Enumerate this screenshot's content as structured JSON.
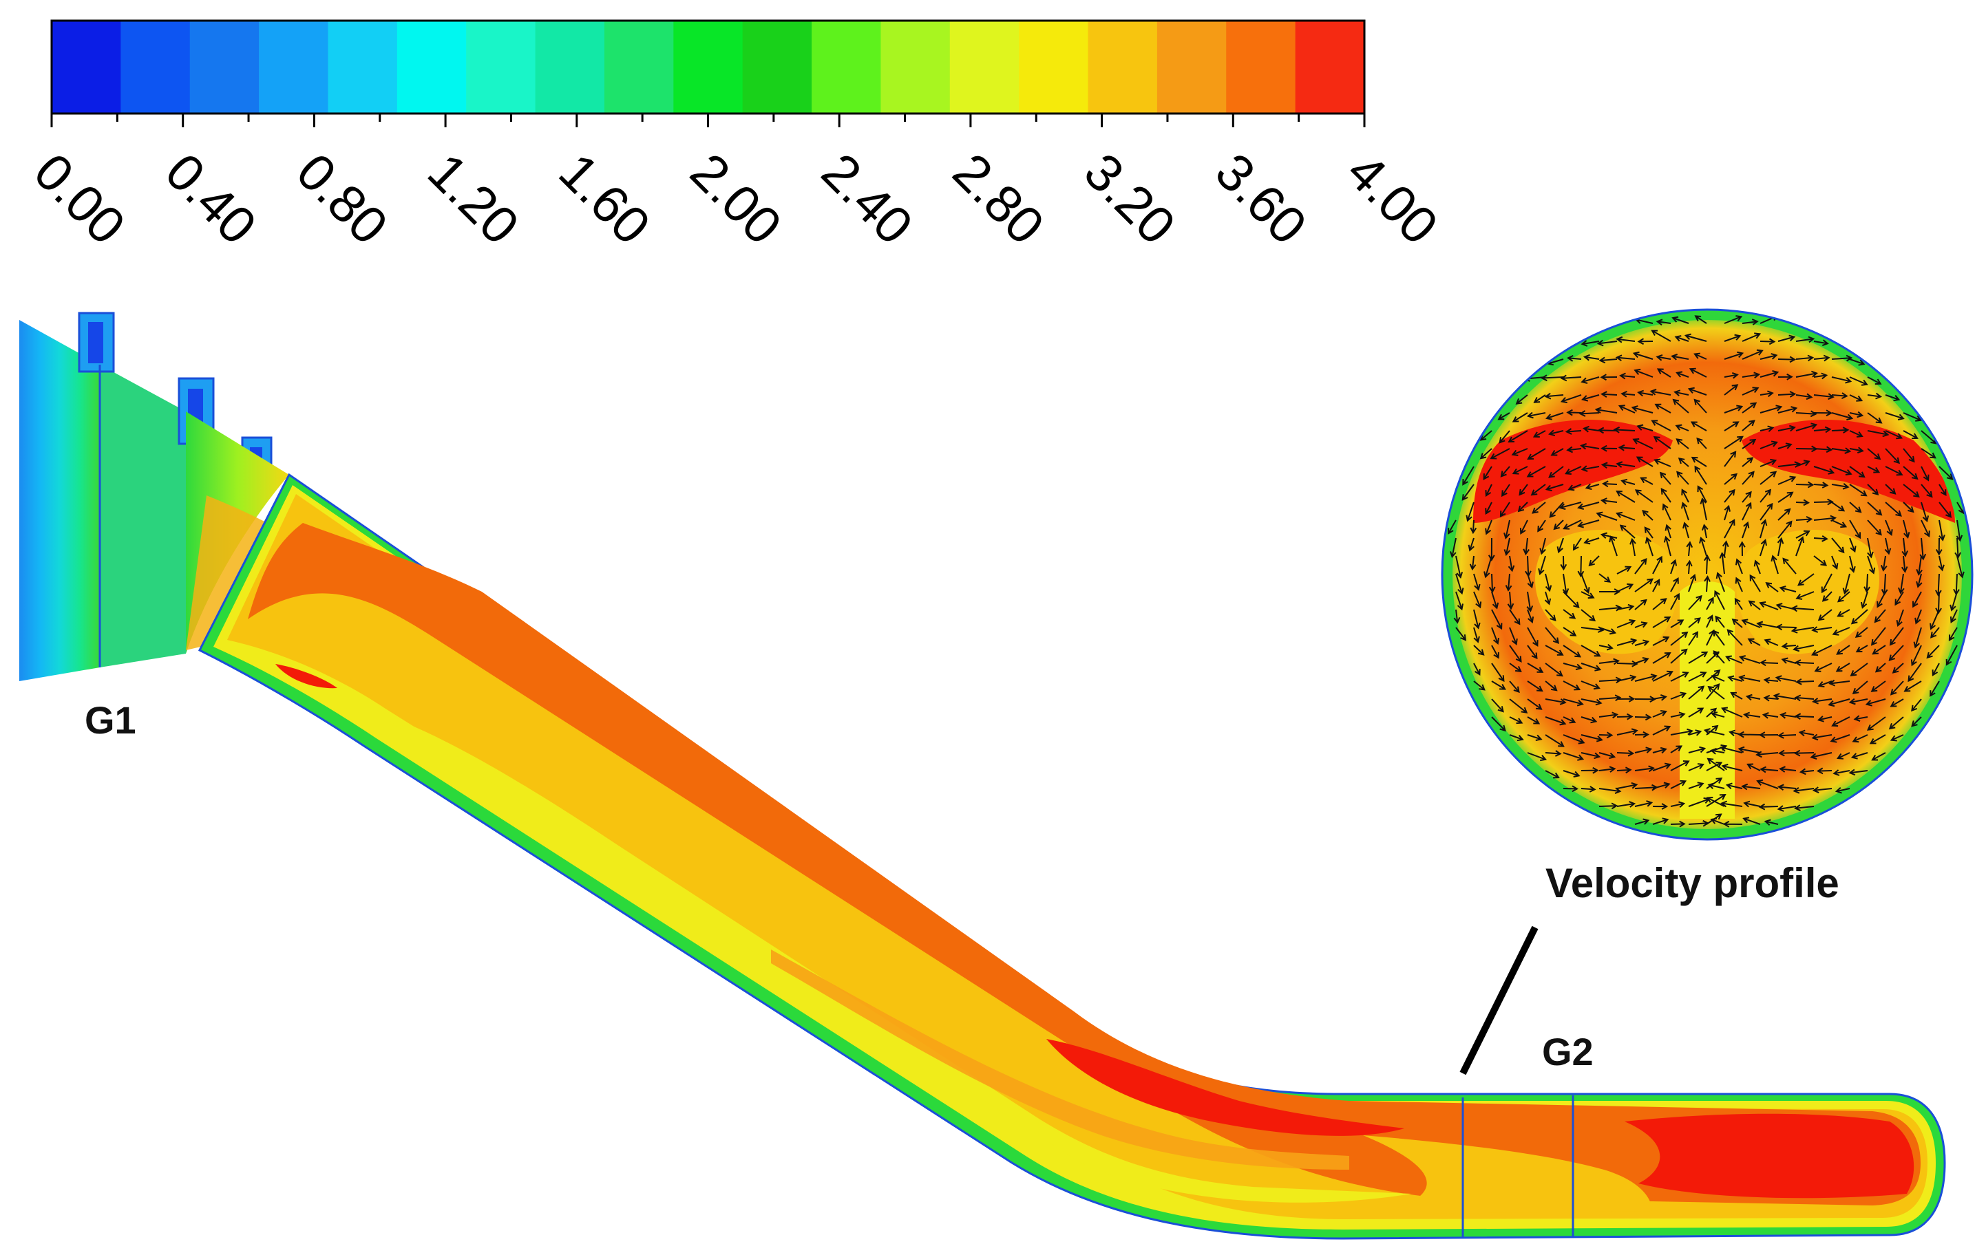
{
  "colorbar": {
    "min": 0.0,
    "max": 4.0,
    "bands": [
      "#0b1ee6",
      "#0d55f2",
      "#1577ef",
      "#14a2f7",
      "#12cff5",
      "#00f7f0",
      "#19f5c8",
      "#12e8a6",
      "#1de36b",
      "#08e627",
      "#19d11a",
      "#5ef21c",
      "#a8f520",
      "#dff51e",
      "#f5ea0b",
      "#f7c50f",
      "#f59b15",
      "#f7700c",
      "#f52a12"
    ],
    "tick_labels": [
      "0.00",
      "0.40",
      "0.80",
      "1.20",
      "1.60",
      "2.00",
      "2.40",
      "2.80",
      "3.20",
      "3.60",
      "4.00"
    ]
  },
  "labels": {
    "g1": "G1",
    "g2": "G2",
    "velocity_profile": "Velocity profile"
  },
  "colors": {
    "pipe_core": "#f26a0a",
    "pipe_hot": "#f31a08",
    "pipe_mid": "#f7a418",
    "pipe_yellow": "#f4ea1a",
    "wall_green": "#22d83a",
    "inlet_blue": "#1e8ff0",
    "inlet_green": "#38d63a",
    "outline": "#1a4fd8"
  }
}
